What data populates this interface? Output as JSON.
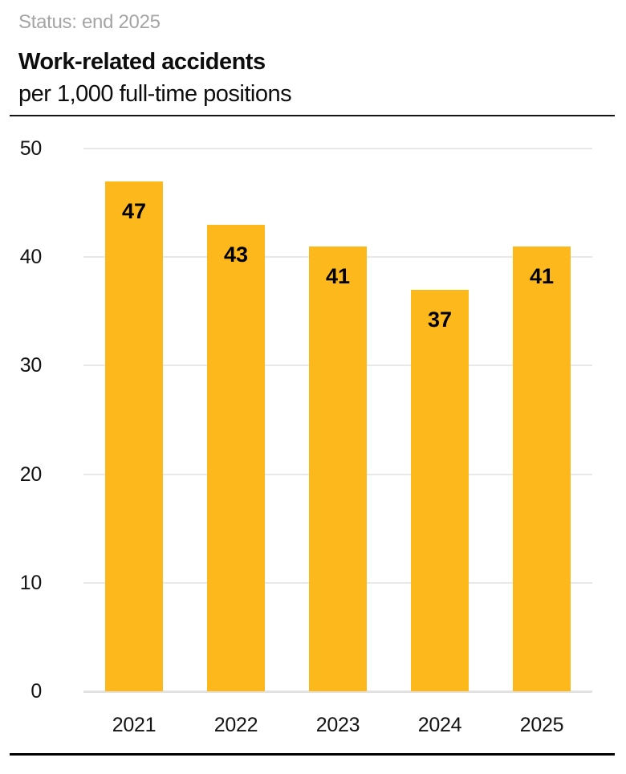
{
  "header": {
    "status": "Status: end 2025",
    "title": "Work-related accidents",
    "subtitle": "per 1,000 full-time positions"
  },
  "chart_data": {
    "type": "bar",
    "title": "Work-related accidents",
    "subtitle": "per 1,000 full-time positions",
    "categories": [
      "2021",
      "2022",
      "2023",
      "2024",
      "2025"
    ],
    "values": [
      47,
      43,
      41,
      37,
      41
    ],
    "xlabel": "",
    "ylabel": "",
    "ylim": [
      0,
      50
    ],
    "yticks": [
      0,
      10,
      20,
      30,
      40,
      50
    ],
    "grid": true,
    "legend": false,
    "value_labels_shown": true
  },
  "colors": {
    "bar": "#fdb81c",
    "gridline": "#e8e8e8",
    "status_text": "#a5a5a5",
    "rule": "#141414",
    "text": "#0d0d0d"
  }
}
